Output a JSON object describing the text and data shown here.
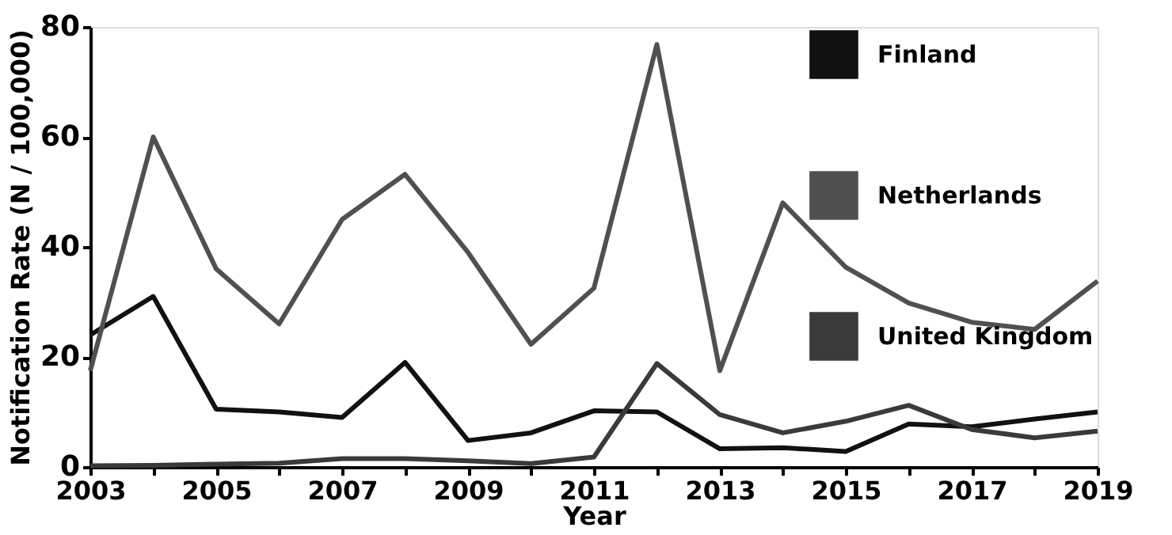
{
  "chart_data": {
    "type": "line",
    "xlabel": "Year",
    "ylabel": "Notification Rate (N / 100,000)",
    "x": [
      2003,
      2004,
      2005,
      2006,
      2007,
      2008,
      2009,
      2010,
      2011,
      2012,
      2013,
      2014,
      2015,
      2016,
      2017,
      2018,
      2019
    ],
    "series": [
      {
        "name": "Finland",
        "color": "#111111",
        "values": [
          24,
          31,
          10.5,
          10,
          9,
          19,
          4.8,
          6.2,
          10.2,
          10,
          3.3,
          3.5,
          2.8,
          7.8,
          7.3,
          8.7,
          10
        ]
      },
      {
        "name": "Netherlands",
        "color": "#505050",
        "values": [
          17.5,
          60,
          36,
          26,
          45,
          53.2,
          39,
          22.3,
          32.5,
          76.8,
          17.5,
          48,
          36.3,
          29.8,
          26.3,
          25,
          33.8
        ]
      },
      {
        "name": "United Kingdom",
        "color": "#3a3a3a",
        "values": [
          0.2,
          0.3,
          0.5,
          0.7,
          1.5,
          1.5,
          1.1,
          0.6,
          1.8,
          18.8,
          9.5,
          6.2,
          8.3,
          11.2,
          6.8,
          5.3,
          6.5
        ]
      }
    ],
    "xlim": [
      2003,
      2019
    ],
    "xticks": [
      2003,
      {
        "value": 2004,
        "label": null
      },
      2005,
      {
        "value": 2006,
        "label": null
      },
      2007,
      {
        "value": 2008,
        "label": null
      },
      2009,
      {
        "value": 2010,
        "label": null
      },
      2011,
      {
        "value": 2012,
        "label": null
      },
      2013,
      {
        "value": 2014,
        "label": null
      },
      2015,
      {
        "value": 2016,
        "label": null
      },
      2017,
      {
        "value": 2018,
        "label": null
      },
      2019
    ],
    "ylim": [
      0,
      80
    ],
    "yticks": [
      0,
      20,
      40,
      60,
      80
    ],
    "grid": false,
    "legend": "top right",
    "marker": "none",
    "line_style": "solid"
  }
}
